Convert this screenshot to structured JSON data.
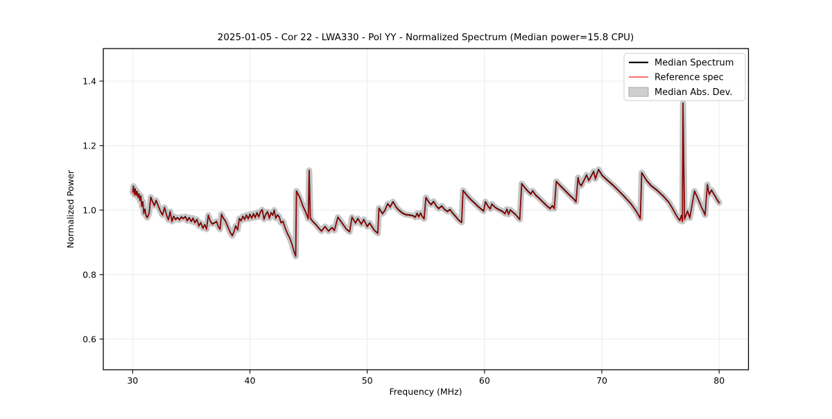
{
  "figure": {
    "title": "2025-01-05 - Cor 22 - LWA330 - Pol YY - Normalized Spectrum (Median power=15.8 CPU)"
  },
  "chart_data": {
    "type": "line",
    "title": "2025-01-05 - Cor 22 - LWA330 - Pol YY - Normalized Spectrum (Median power=15.8 CPU)",
    "xlabel": "Frequency (MHz)",
    "ylabel": "Normalized Power",
    "xlim": [
      27.5,
      82.5
    ],
    "ylim": [
      0.505,
      1.501
    ],
    "xticks": [
      30,
      40,
      50,
      60,
      70,
      80
    ],
    "yticks": [
      0.6,
      0.8,
      1.0,
      1.2,
      1.4
    ],
    "grid": true,
    "grid_color": "#e8e8e8",
    "legend_position": "upper right",
    "series": [
      {
        "name": "Median Spectrum",
        "color": "#000000",
        "line_width": 1.7,
        "points": [
          [
            30.0,
            1.056
          ],
          [
            30.07,
            1.074
          ],
          [
            30.15,
            1.048
          ],
          [
            30.22,
            1.066
          ],
          [
            30.3,
            1.046
          ],
          [
            30.38,
            1.058
          ],
          [
            30.46,
            1.04
          ],
          [
            30.54,
            1.05
          ],
          [
            30.62,
            1.03
          ],
          [
            30.7,
            1.044
          ],
          [
            30.78,
            1.012
          ],
          [
            30.87,
            1.026
          ],
          [
            30.95,
            0.99
          ],
          [
            31.05,
            1.003
          ],
          [
            31.15,
            0.982
          ],
          [
            31.25,
            0.977
          ],
          [
            31.4,
            0.99
          ],
          [
            31.55,
            1.04
          ],
          [
            31.7,
            1.026
          ],
          [
            31.85,
            1.014
          ],
          [
            32.0,
            1.03
          ],
          [
            32.15,
            1.016
          ],
          [
            32.35,
            0.998
          ],
          [
            32.55,
            0.985
          ],
          [
            32.72,
            1.008
          ],
          [
            32.9,
            0.984
          ],
          [
            33.05,
            0.97
          ],
          [
            33.2,
            0.995
          ],
          [
            33.35,
            0.965
          ],
          [
            33.5,
            0.981
          ],
          [
            33.65,
            0.971
          ],
          [
            33.82,
            0.977
          ],
          [
            34.0,
            0.97
          ],
          [
            34.15,
            0.979
          ],
          [
            34.3,
            0.974
          ],
          [
            34.5,
            0.98
          ],
          [
            34.65,
            0.967
          ],
          [
            34.82,
            0.977
          ],
          [
            35.0,
            0.965
          ],
          [
            35.15,
            0.975
          ],
          [
            35.3,
            0.961
          ],
          [
            35.48,
            0.971
          ],
          [
            35.65,
            0.951
          ],
          [
            35.8,
            0.961
          ],
          [
            36.0,
            0.944
          ],
          [
            36.15,
            0.955
          ],
          [
            36.3,
            0.941
          ],
          [
            36.45,
            0.984
          ],
          [
            36.6,
            0.967
          ],
          [
            36.8,
            0.957
          ],
          [
            37.0,
            0.961
          ],
          [
            37.15,
            0.965
          ],
          [
            37.3,
            0.949
          ],
          [
            37.45,
            0.941
          ],
          [
            37.58,
            0.987
          ],
          [
            37.75,
            0.974
          ],
          [
            37.9,
            0.967
          ],
          [
            38.05,
            0.954
          ],
          [
            38.2,
            0.941
          ],
          [
            38.35,
            0.929
          ],
          [
            38.5,
            0.921
          ],
          [
            38.65,
            0.934
          ],
          [
            38.78,
            0.951
          ],
          [
            38.95,
            0.939
          ],
          [
            39.1,
            0.974
          ],
          [
            39.25,
            0.967
          ],
          [
            39.4,
            0.981
          ],
          [
            39.55,
            0.971
          ],
          [
            39.7,
            0.985
          ],
          [
            39.85,
            0.973
          ],
          [
            40.0,
            0.987
          ],
          [
            40.15,
            0.975
          ],
          [
            40.3,
            0.989
          ],
          [
            40.45,
            0.977
          ],
          [
            40.6,
            0.992
          ],
          [
            40.75,
            0.979
          ],
          [
            40.9,
            0.995
          ],
          [
            41.05,
            1.001
          ],
          [
            41.2,
            0.972
          ],
          [
            41.35,
            0.987
          ],
          [
            41.5,
            0.995
          ],
          [
            41.65,
            0.975
          ],
          [
            41.8,
            0.992
          ],
          [
            41.95,
            0.984
          ],
          [
            42.07,
            1.0
          ],
          [
            42.2,
            0.975
          ],
          [
            42.35,
            0.985
          ],
          [
            42.5,
            0.979
          ],
          [
            42.65,
            0.961
          ],
          [
            42.82,
            0.965
          ],
          [
            43.0,
            0.945
          ],
          [
            43.2,
            0.927
          ],
          [
            43.4,
            0.913
          ],
          [
            43.6,
            0.893
          ],
          [
            43.75,
            0.872
          ],
          [
            43.9,
            0.857
          ],
          [
            43.97,
            1.059
          ],
          [
            44.25,
            1.039
          ],
          [
            44.5,
            1.014
          ],
          [
            44.75,
            0.994
          ],
          [
            44.97,
            0.973
          ],
          [
            45.05,
            1.123
          ],
          [
            45.15,
            0.975
          ],
          [
            45.35,
            0.965
          ],
          [
            45.6,
            0.956
          ],
          [
            45.85,
            0.945
          ],
          [
            46.1,
            0.935
          ],
          [
            46.4,
            0.949
          ],
          [
            46.7,
            0.935
          ],
          [
            47.0,
            0.946
          ],
          [
            47.2,
            0.937
          ],
          [
            47.5,
            0.978
          ],
          [
            47.8,
            0.963
          ],
          [
            48.2,
            0.942
          ],
          [
            48.5,
            0.933
          ],
          [
            48.7,
            0.978
          ],
          [
            49.0,
            0.96
          ],
          [
            49.2,
            0.974
          ],
          [
            49.5,
            0.956
          ],
          [
            49.7,
            0.971
          ],
          [
            50.0,
            0.949
          ],
          [
            50.2,
            0.96
          ],
          [
            50.6,
            0.938
          ],
          [
            50.9,
            0.928
          ],
          [
            51.0,
            1.006
          ],
          [
            51.3,
            0.989
          ],
          [
            51.5,
            0.999
          ],
          [
            51.75,
            1.02
          ],
          [
            51.95,
            1.01
          ],
          [
            52.2,
            1.026
          ],
          [
            52.45,
            1.01
          ],
          [
            52.7,
            1.0
          ],
          [
            53.0,
            0.991
          ],
          [
            53.3,
            0.986
          ],
          [
            53.6,
            0.985
          ],
          [
            53.9,
            0.983
          ],
          [
            54.1,
            0.978
          ],
          [
            54.25,
            0.99
          ],
          [
            54.4,
            0.979
          ],
          [
            54.55,
            0.991
          ],
          [
            54.7,
            0.98
          ],
          [
            54.85,
            0.973
          ],
          [
            55.0,
            1.039
          ],
          [
            55.25,
            1.025
          ],
          [
            55.45,
            1.017
          ],
          [
            55.65,
            1.027
          ],
          [
            55.9,
            1.012
          ],
          [
            56.1,
            1.005
          ],
          [
            56.35,
            1.013
          ],
          [
            56.6,
            1.002
          ],
          [
            56.85,
            0.996
          ],
          [
            57.05,
            1.002
          ],
          [
            57.3,
            0.99
          ],
          [
            57.5,
            0.982
          ],
          [
            57.7,
            0.973
          ],
          [
            57.9,
            0.966
          ],
          [
            58.05,
            0.962
          ],
          [
            58.17,
            1.061
          ],
          [
            58.5,
            1.046
          ],
          [
            58.8,
            1.034
          ],
          [
            59.1,
            1.024
          ],
          [
            59.4,
            1.013
          ],
          [
            59.7,
            1.004
          ],
          [
            59.92,
            0.997
          ],
          [
            60.08,
            1.026
          ],
          [
            60.3,
            1.012
          ],
          [
            60.5,
            1.004
          ],
          [
            60.62,
            1.019
          ],
          [
            60.9,
            1.009
          ],
          [
            61.2,
            1.002
          ],
          [
            61.5,
            0.997
          ],
          [
            61.75,
            0.989
          ],
          [
            61.9,
            1.003
          ],
          [
            62.05,
            0.987
          ],
          [
            62.2,
            1.001
          ],
          [
            62.4,
            0.994
          ],
          [
            62.6,
            0.988
          ],
          [
            62.8,
            0.98
          ],
          [
            63.0,
            0.971
          ],
          [
            63.17,
            1.082
          ],
          [
            63.45,
            1.069
          ],
          [
            63.7,
            1.059
          ],
          [
            63.95,
            1.05
          ],
          [
            64.1,
            1.06
          ],
          [
            64.35,
            1.047
          ],
          [
            64.6,
            1.039
          ],
          [
            64.85,
            1.03
          ],
          [
            65.1,
            1.021
          ],
          [
            65.35,
            1.012
          ],
          [
            65.6,
            1.005
          ],
          [
            65.78,
            1.014
          ],
          [
            65.95,
            1.005
          ],
          [
            66.12,
            1.089
          ],
          [
            66.4,
            1.078
          ],
          [
            66.7,
            1.067
          ],
          [
            67.0,
            1.056
          ],
          [
            67.3,
            1.045
          ],
          [
            67.6,
            1.035
          ],
          [
            67.8,
            1.026
          ],
          [
            67.97,
            1.101
          ],
          [
            68.1,
            1.082
          ],
          [
            68.25,
            1.076
          ],
          [
            68.5,
            1.094
          ],
          [
            68.7,
            1.109
          ],
          [
            68.88,
            1.092
          ],
          [
            69.1,
            1.106
          ],
          [
            69.3,
            1.12
          ],
          [
            69.45,
            1.097
          ],
          [
            69.6,
            1.114
          ],
          [
            69.72,
            1.126
          ],
          [
            70.0,
            1.109
          ],
          [
            70.5,
            1.092
          ],
          [
            71.0,
            1.076
          ],
          [
            71.5,
            1.058
          ],
          [
            72.0,
            1.039
          ],
          [
            72.5,
            1.019
          ],
          [
            73.0,
            0.993
          ],
          [
            73.28,
            0.974
          ],
          [
            73.4,
            1.116
          ],
          [
            73.8,
            1.093
          ],
          [
            74.2,
            1.076
          ],
          [
            74.7,
            1.062
          ],
          [
            75.2,
            1.045
          ],
          [
            75.7,
            1.025
          ],
          [
            76.0,
            1.007
          ],
          [
            76.3,
            0.987
          ],
          [
            76.5,
            0.975
          ],
          [
            76.65,
            0.968
          ],
          [
            76.78,
            0.983
          ],
          [
            76.87,
            0.965
          ],
          [
            76.92,
            1.331
          ],
          [
            77.05,
            0.972
          ],
          [
            77.3,
            0.997
          ],
          [
            77.5,
            0.976
          ],
          [
            77.9,
            1.059
          ],
          [
            78.2,
            1.035
          ],
          [
            78.5,
            1.009
          ],
          [
            78.65,
            0.998
          ],
          [
            78.8,
            0.985
          ],
          [
            79.0,
            1.079
          ],
          [
            79.15,
            1.049
          ],
          [
            79.35,
            1.062
          ],
          [
            79.6,
            1.047
          ],
          [
            79.8,
            1.034
          ],
          [
            80.0,
            1.023
          ]
        ]
      },
      {
        "name": "Reference spec",
        "color": "rgba(255,0,0,0.65)",
        "line_width": 1.3,
        "derived_from": "Median Spectrum",
        "amplitude_scale": 0.995,
        "offset": -0.002
      },
      {
        "name": "Median Abs. Dev.",
        "color": "rgba(128,128,128,0.45)",
        "band_halfwidth": 0.0095,
        "legend_patch_fill": "#cfcfcf",
        "legend_patch_border": "#aaaaaa"
      }
    ]
  }
}
